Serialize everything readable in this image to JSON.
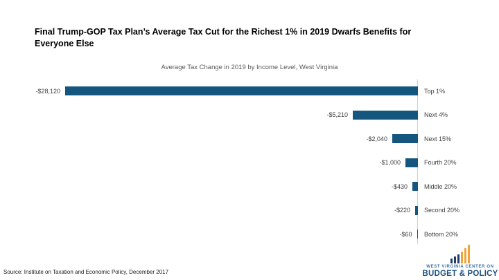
{
  "page": {
    "title": "Final Trump-GOP Tax Plan’s Average Tax Cut for the Richest 1% in 2019 Dwarfs Benefits for\nEveryone Else",
    "source": "Source: Institute on Taxation and Economic Policy, December 2017"
  },
  "chart_data": {
    "type": "bar",
    "orientation": "horizontal",
    "title": "Final Trump-GOP Tax Plan’s Average Tax Cut for the Richest 1% in 2019 Dwarfs Benefits for Everyone Else",
    "subtitle": "Average Tax Change in 2019 by Income Level, West Virginia",
    "categories": [
      "Top 1%",
      "Next 4%",
      "Next 15%",
      "Fourth 20%",
      "Middle 20%",
      "Second 20%",
      "Bottom 20%"
    ],
    "values": [
      -28120,
      -5210,
      -2040,
      -1000,
      -430,
      -220,
      -60
    ],
    "value_labels": [
      "-$28,120",
      "-$5,210",
      "-$2,040",
      "-$1,000",
      "-$430",
      "-$220",
      "-$60"
    ],
    "xlim": [
      -30000,
      0
    ],
    "bar_color": "#14567E",
    "axis_color": "#CFCFCF",
    "grid": false,
    "legend": false,
    "category_axis_side": "right",
    "value_label_position": "left-of-bar"
  },
  "logo": {
    "line1": "WEST VIRGINIA CENTER ON",
    "line2": "BUDGET & POLICY",
    "icon": "bar-chart-icon",
    "colors": {
      "navy": "#1F3B66",
      "gold": "#F0A339",
      "text_small": "#3A6DA3",
      "text_big": "#1D5080"
    }
  }
}
